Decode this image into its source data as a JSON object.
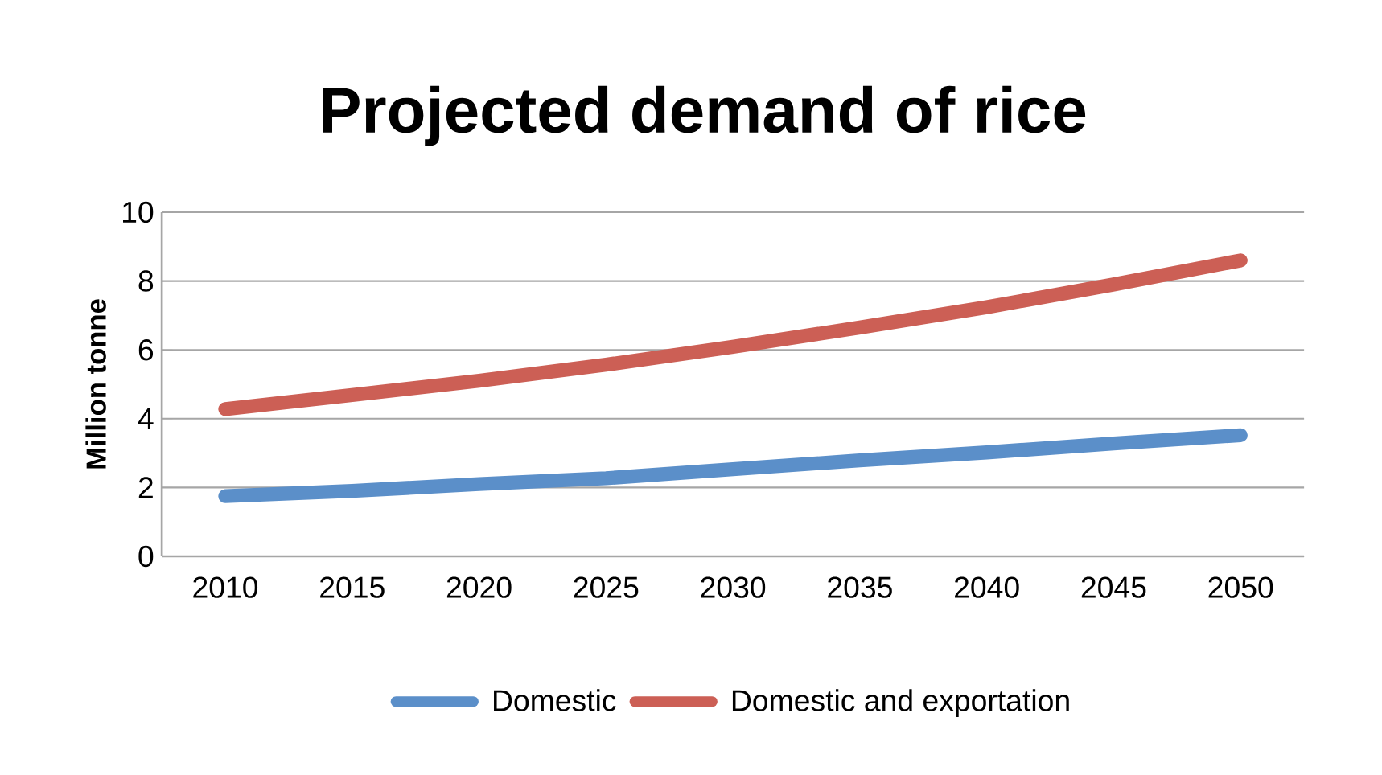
{
  "chart_data": {
    "type": "line",
    "title": "Projected demand of rice",
    "ylabel": "Million tonne",
    "categories": [
      "2010",
      "2015",
      "2020",
      "2025",
      "2030",
      "2035",
      "2040",
      "2045",
      "2050"
    ],
    "series": [
      {
        "name": "Domestic",
        "color": "#5b8fc9",
        "values": [
          1.75,
          1.9,
          2.1,
          2.27,
          2.53,
          2.79,
          3.02,
          3.28,
          3.52
        ]
      },
      {
        "name": "Domestic and exportation",
        "color": "#cc5f55",
        "values": [
          4.28,
          4.69,
          5.1,
          5.57,
          6.09,
          6.65,
          7.24,
          7.9,
          8.6
        ]
      }
    ],
    "ylim": [
      0,
      10
    ],
    "yticks": [
      0,
      2,
      4,
      6,
      8,
      10
    ],
    "grid": "y",
    "legend": "bottom",
    "marker": "none",
    "line_style": "solid"
  }
}
